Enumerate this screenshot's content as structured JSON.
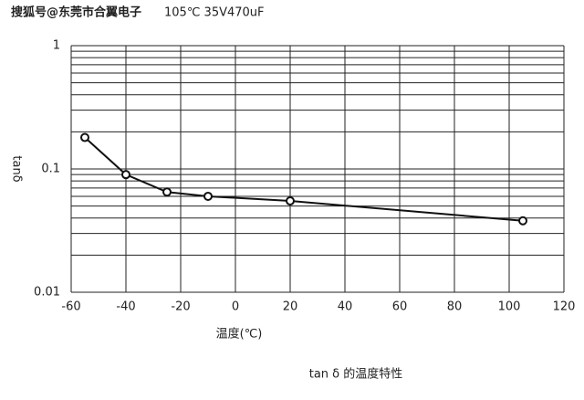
{
  "chart_data": {
    "type": "line",
    "watermark": "搜狐号@东莞市合翼电子",
    "title": "105℃ 35V470uF",
    "x_label": "温度(℃)",
    "y_label": "tanδ",
    "caption": "tan δ 的温度特性",
    "x": [
      -55,
      -40,
      -25,
      -10,
      20,
      105
    ],
    "series": [
      {
        "color": "#111111",
        "values": [
          0.18,
          0.09,
          0.065,
          0.06,
          0.055,
          0.038
        ]
      }
    ],
    "xlim": [
      -60,
      120
    ],
    "xticks": [
      -60,
      -40,
      -20,
      0,
      20,
      40,
      60,
      80,
      100,
      120
    ],
    "ylim": [
      0.01,
      1
    ],
    "yticks": [
      0.01,
      0.1,
      1
    ],
    "log_y": true,
    "grid": true,
    "minor_grid": true
  }
}
